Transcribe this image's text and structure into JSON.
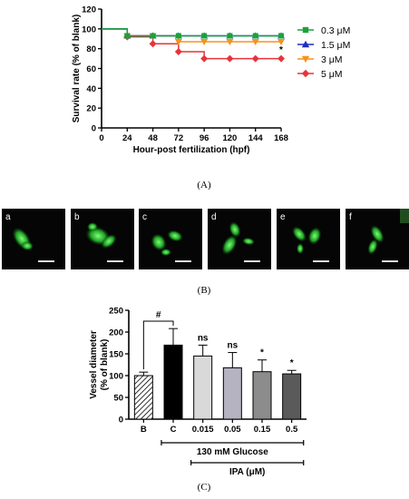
{
  "panel_labels": {
    "a": "(A)",
    "b": "(B)",
    "c": "(C)"
  },
  "chart_data": [
    {
      "type": "line",
      "panel": "(A)",
      "title": "",
      "xlabel": "Hour-post fertilization (hpf)",
      "ylabel": "Survival rate (% of blank)",
      "xlim": [
        0,
        168
      ],
      "ylim": [
        0,
        120
      ],
      "xticks": [
        0,
        24,
        48,
        72,
        96,
        120,
        144,
        168
      ],
      "yticks": [
        0,
        20,
        40,
        60,
        80,
        100,
        120
      ],
      "start": {
        "x": 0,
        "y": 100
      },
      "x": [
        24,
        48,
        72,
        96,
        120,
        144,
        168
      ],
      "series": [
        {
          "name": "0.3 μM",
          "color": "#1aa23a",
          "marker": "square",
          "values": [
            93,
            93,
            93,
            93,
            93,
            93,
            93
          ]
        },
        {
          "name": "1.5 μM",
          "color": "#1c2fbf",
          "marker": "triangle-up",
          "values": [
            93,
            93,
            93,
            93,
            93,
            93,
            93
          ]
        },
        {
          "name": "3 μM",
          "color": "#f7921e",
          "marker": "triangle-down",
          "values": [
            93,
            93,
            87,
            87,
            87,
            87,
            87
          ]
        },
        {
          "name": "5 μM",
          "color": "#e8333a",
          "marker": "diamond",
          "values": [
            92,
            85,
            77,
            70,
            70,
            70,
            70
          ]
        }
      ],
      "annotations": [
        {
          "text": "*",
          "x": 168,
          "y": 76
        }
      ],
      "legend_position": "right"
    },
    {
      "type": "image-grid",
      "panel": "(B)",
      "labels": [
        "a",
        "b",
        "c",
        "d",
        "e",
        "f"
      ],
      "image_description": "fluorescent green vessels on black background with white scale bar"
    },
    {
      "type": "bar",
      "panel": "(C)",
      "title": "",
      "xlabel": "",
      "ylabel": "Vessel diameter (% of blank)",
      "ylim": [
        0,
        250
      ],
      "yticks": [
        0,
        50,
        100,
        150,
        200,
        250
      ],
      "categories": [
        "B",
        "C",
        "0.015",
        "0.05",
        "0.15",
        "0.5"
      ],
      "values": [
        100,
        170,
        145,
        118,
        109,
        104
      ],
      "errors": [
        8,
        38,
        25,
        35,
        27,
        8
      ],
      "fills": [
        "hatch",
        "#000000",
        "#d9d9d9",
        "#b5b2c2",
        "#8c8c8c",
        "#5a5a5a"
      ],
      "labels_above": [
        "",
        "",
        "ns",
        "ns",
        "*",
        "*"
      ],
      "significance": {
        "text": "#",
        "from": "B",
        "to": "C",
        "y": 225
      },
      "group_labels": [
        {
          "text": "130 mM Glucose",
          "from": "C",
          "to": "0.5"
        },
        {
          "text": "IPA (μM)",
          "from": "0.015",
          "to": "0.5"
        }
      ]
    }
  ]
}
